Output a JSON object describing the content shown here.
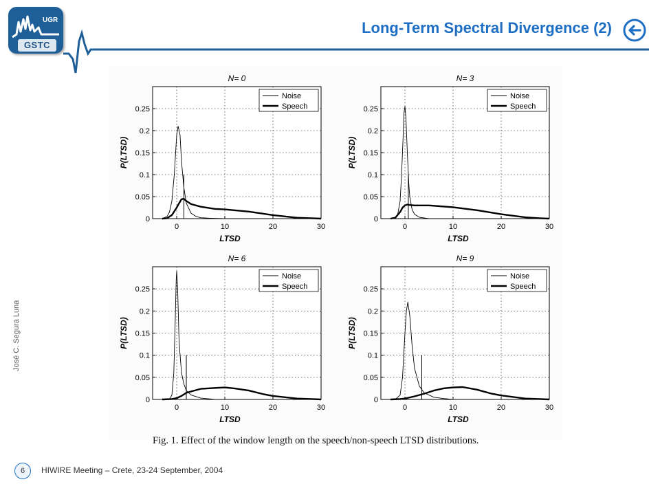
{
  "slide": {
    "title": "Long-Term Spectral Divergence (2)",
    "logo": {
      "top_text": "UGR",
      "bottom_text": "GSTC"
    },
    "author": "José C. Segura Luna",
    "page_number": "6",
    "footer": "HIWIRE  Meeting – Crete, 23-24  September, 2004",
    "back_icon": "back-arrow-icon",
    "accent_color": "#1e6fc4",
    "logo_color": "#1e5f97"
  },
  "caption": "Fig. 1.  Effect of the window length on the speech/non-speech LTSD distributions.",
  "chart_data": [
    {
      "type": "line",
      "title": "N= 0",
      "xlabel": "LTSD",
      "ylabel": "P(LTSD)",
      "xlim": [
        -5,
        30
      ],
      "ylim": [
        0,
        0.3
      ],
      "xticks": [
        0,
        10,
        20,
        30
      ],
      "yticks": [
        0,
        0.05,
        0.1,
        0.15,
        0.2,
        0.25
      ],
      "grid": "dotted",
      "legend": "top-right",
      "threshold": 1.5,
      "series": [
        {
          "name": "Noise",
          "x": [
            -3,
            -2,
            -1.5,
            -1,
            -0.5,
            0,
            0.3,
            0.7,
            1,
            1.5,
            2,
            3,
            4,
            5,
            7,
            10
          ],
          "y": [
            0,
            0.005,
            0.015,
            0.04,
            0.1,
            0.19,
            0.21,
            0.19,
            0.13,
            0.07,
            0.035,
            0.012,
            0.005,
            0.002,
            0.001,
            0
          ]
        },
        {
          "name": "Speech",
          "x": [
            -3,
            -2,
            -1,
            0,
            0.5,
            1,
            1.5,
            2,
            3,
            5,
            8,
            10,
            15,
            20,
            25,
            28,
            30
          ],
          "y": [
            0,
            0.001,
            0.008,
            0.025,
            0.035,
            0.044,
            0.045,
            0.04,
            0.033,
            0.027,
            0.022,
            0.021,
            0.016,
            0.008,
            0.002,
            0.001,
            0
          ]
        }
      ]
    },
    {
      "type": "line",
      "title": "N= 3",
      "xlabel": "LTSD",
      "ylabel": "P(LTSD)",
      "xlim": [
        -5,
        30
      ],
      "ylim": [
        0,
        0.3
      ],
      "xticks": [
        0,
        10,
        20,
        30
      ],
      "yticks": [
        0,
        0.05,
        0.1,
        0.15,
        0.2,
        0.25
      ],
      "grid": "dotted",
      "legend": "top-right",
      "threshold": 0.7,
      "series": [
        {
          "name": "Noise",
          "x": [
            -2,
            -1.5,
            -1,
            -0.7,
            -0.4,
            -0.2,
            0,
            0.2,
            0.5,
            0.8,
            1,
            1.5,
            2,
            3,
            5
          ],
          "y": [
            0,
            0.01,
            0.04,
            0.1,
            0.18,
            0.24,
            0.255,
            0.23,
            0.15,
            0.08,
            0.05,
            0.02,
            0.01,
            0.003,
            0
          ]
        },
        {
          "name": "Speech",
          "x": [
            -3,
            -2,
            -1,
            -0.5,
            0,
            0.5,
            1,
            2,
            5,
            10,
            15,
            20,
            25,
            28,
            30
          ],
          "y": [
            0,
            0.002,
            0.015,
            0.025,
            0.03,
            0.032,
            0.031,
            0.03,
            0.03,
            0.026,
            0.019,
            0.01,
            0.003,
            0.001,
            0
          ]
        }
      ]
    },
    {
      "type": "line",
      "title": "N= 6",
      "xlabel": "LTSD",
      "ylabel": "P(LTSD)",
      "xlim": [
        -5,
        30
      ],
      "ylim": [
        0,
        0.3
      ],
      "xticks": [
        0,
        10,
        20,
        30
      ],
      "yticks": [
        0,
        0.05,
        0.1,
        0.15,
        0.2,
        0.25
      ],
      "grid": "dotted",
      "legend": "top-right",
      "threshold": 2,
      "series": [
        {
          "name": "Noise",
          "x": [
            -1.5,
            -1,
            -0.6,
            -0.3,
            -0.1,
            0,
            0.2,
            0.5,
            1,
            1.5,
            2,
            3,
            5,
            8
          ],
          "y": [
            0,
            0.01,
            0.06,
            0.18,
            0.27,
            0.29,
            0.25,
            0.13,
            0.06,
            0.035,
            0.02,
            0.01,
            0.003,
            0
          ]
        },
        {
          "name": "Speech",
          "x": [
            -3,
            -1,
            0,
            1,
            2,
            3,
            5,
            8,
            10,
            12,
            15,
            18,
            20,
            25,
            28,
            30
          ],
          "y": [
            0,
            0.001,
            0.003,
            0.008,
            0.015,
            0.018,
            0.024,
            0.026,
            0.027,
            0.025,
            0.02,
            0.012,
            0.008,
            0.002,
            0.001,
            0
          ]
        }
      ]
    },
    {
      "type": "line",
      "title": "N= 9",
      "xlabel": "LTSD",
      "ylabel": "P(LTSD)",
      "xlim": [
        -5,
        30
      ],
      "ylim": [
        0,
        0.3
      ],
      "xticks": [
        0,
        10,
        20,
        30
      ],
      "yticks": [
        0,
        0.05,
        0.1,
        0.15,
        0.2,
        0.25
      ],
      "grid": "dotted",
      "legend": "top-right",
      "threshold": 3.5,
      "series": [
        {
          "name": "Noise",
          "x": [
            -2,
            -1,
            -0.5,
            0,
            0.3,
            0.6,
            1,
            1.5,
            2,
            3,
            4,
            6,
            8,
            10
          ],
          "y": [
            0,
            0.01,
            0.05,
            0.15,
            0.2,
            0.22,
            0.19,
            0.12,
            0.07,
            0.03,
            0.015,
            0.005,
            0.002,
            0
          ]
        },
        {
          "name": "Speech",
          "x": [
            -3,
            -1,
            0,
            2,
            4,
            6,
            8,
            10,
            12,
            15,
            18,
            20,
            25,
            28,
            30
          ],
          "y": [
            0,
            0.001,
            0.002,
            0.007,
            0.013,
            0.02,
            0.025,
            0.027,
            0.028,
            0.022,
            0.013,
            0.009,
            0.002,
            0.001,
            0
          ]
        }
      ]
    }
  ]
}
